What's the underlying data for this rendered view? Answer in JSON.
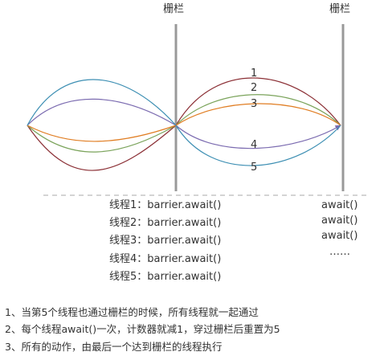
{
  "barriers": [
    {
      "label": "栅栏"
    },
    {
      "label": "栅栏"
    }
  ],
  "thread_numbers": [
    "1",
    "2",
    "3",
    "4",
    "5"
  ],
  "thread_calls": [
    "线程1：barrier.await()",
    "线程2：barrier.await()",
    "线程3：barrier.await()",
    "线程4：barrier.await()",
    "线程5：barrier.await()"
  ],
  "right_calls": [
    "await()",
    "await()",
    "await()",
    "……"
  ],
  "notes": [
    "1、当第5个线程也通过栅栏的时候，所有线程就一起通过",
    "2、每个线程await()一次，计数器就减1，穿过栅栏后重置为5",
    "3、所有的动作，由最后一个达到栅栏的线程执行"
  ],
  "colors": {
    "thread1": "#8b2f35",
    "thread2": "#7aa35a",
    "thread3": "#e07d22",
    "thread4": "#7b6bb0",
    "thread5": "#3d8fb3",
    "barrier": "#999999",
    "dashed": "#aaaaaa",
    "text": "#333333"
  }
}
